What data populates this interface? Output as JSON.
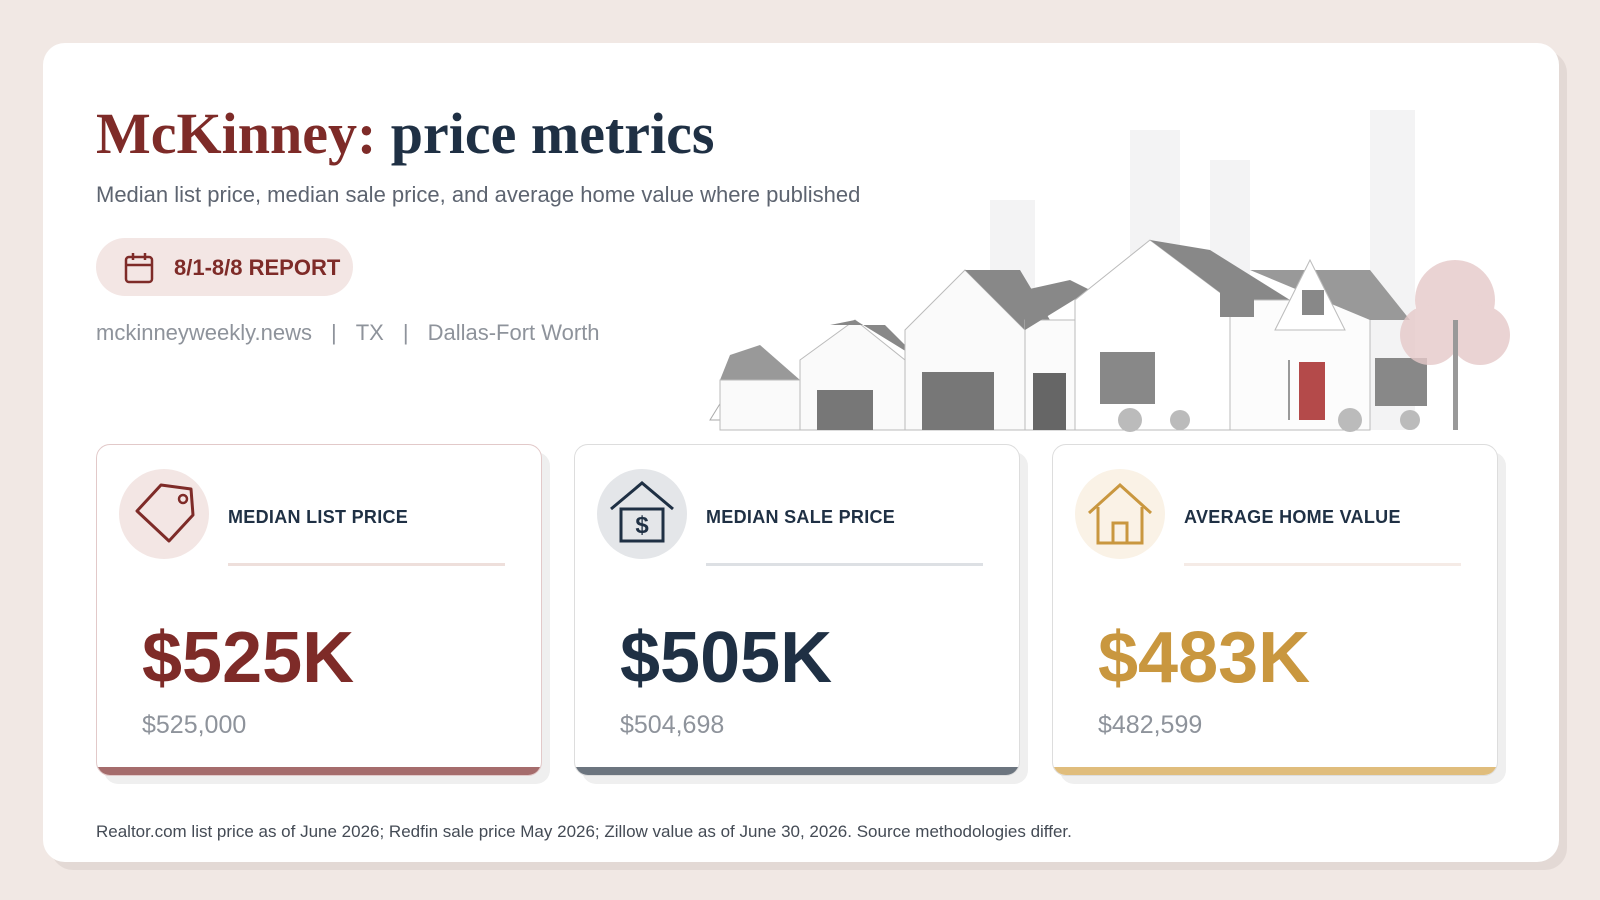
{
  "header": {
    "title_place": "McKinney:",
    "title_rest": "price metrics",
    "subtitle": "Median list price, median sale price, and average home value where published"
  },
  "badge": "8/1-8/8 REPORT",
  "meta": {
    "items": [
      "mckinneyweekly.news",
      "TX",
      "Dallas-Fort Worth"
    ],
    "separator": "|"
  },
  "cards": [
    {
      "label": "MEDIAN LIST PRICE",
      "value": "$525K",
      "exact": "$525,000"
    },
    {
      "label": "MEDIAN SALE PRICE",
      "value": "$505K",
      "exact": "$504,698"
    },
    {
      "label": "AVERAGE HOME VALUE",
      "value": "$483K",
      "exact": "$482,599"
    }
  ],
  "footnote": "Realtor.com list price as of June 2026; Redfin sale price May 2026; Zillow value as of June 30, 2026. Source methodologies differ."
}
